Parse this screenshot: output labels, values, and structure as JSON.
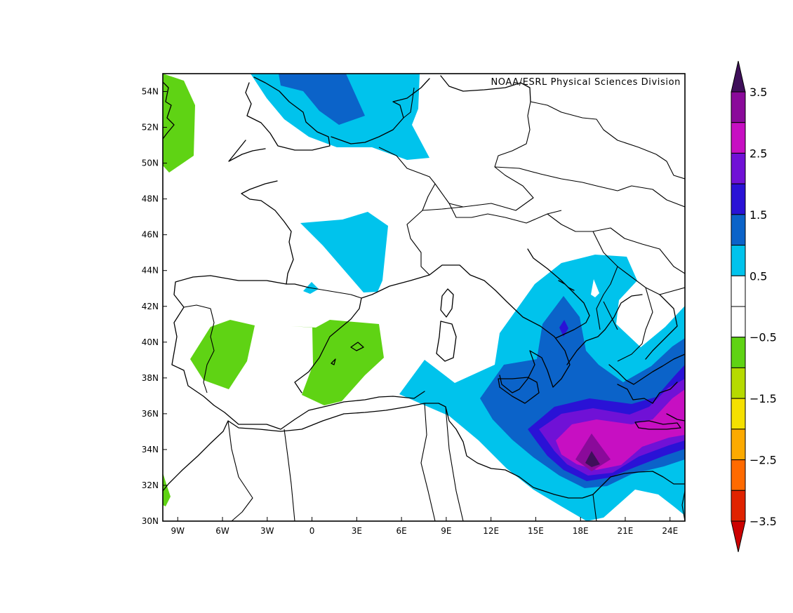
{
  "credit": "NOAA/ESRL Physical Sciences Division",
  "axes": {
    "lon_range": [
      -10,
      25
    ],
    "lat_range": [
      30,
      55
    ],
    "x_ticks": [
      "9W",
      "6W",
      "3W",
      "0",
      "3E",
      "6E",
      "9E",
      "12E",
      "15E",
      "18E",
      "21E",
      "24E"
    ],
    "x_tick_values": [
      -9,
      -6,
      -3,
      0,
      3,
      6,
      9,
      12,
      15,
      18,
      21,
      24
    ],
    "y_ticks": [
      "30N",
      "32N",
      "34N",
      "36N",
      "38N",
      "40N",
      "42N",
      "44N",
      "46N",
      "48N",
      "50N",
      "52N",
      "54N"
    ],
    "y_tick_values": [
      30,
      32,
      34,
      36,
      38,
      40,
      42,
      44,
      46,
      48,
      50,
      52,
      54
    ]
  },
  "colorbar": {
    "labels": [
      "3.5",
      "2.5",
      "1.5",
      "0.5",
      "−0.5",
      "−1.5",
      "−2.5",
      "−3.5"
    ],
    "colors_top_to_bottom": [
      "#3f0f5a",
      "#8a0a9a",
      "#c70fc2",
      "#7011d6",
      "#2a12d6",
      "#0b63c9",
      "#00c3ec",
      "#ffffff",
      "#ffffff",
      "#5fd314",
      "#b6da00",
      "#f5e000",
      "#fcaa00",
      "#ff6a00",
      "#e02300",
      "#cc0000"
    ]
  },
  "colors": {
    "green": "#5fd314",
    "light_blue": "#00c3ec",
    "mid_blue": "#0b63c9",
    "blue_violet": "#2a12d6",
    "violet": "#7011d6",
    "magenta": "#c70fc2",
    "dark_purple": "#3f0f5a"
  }
}
